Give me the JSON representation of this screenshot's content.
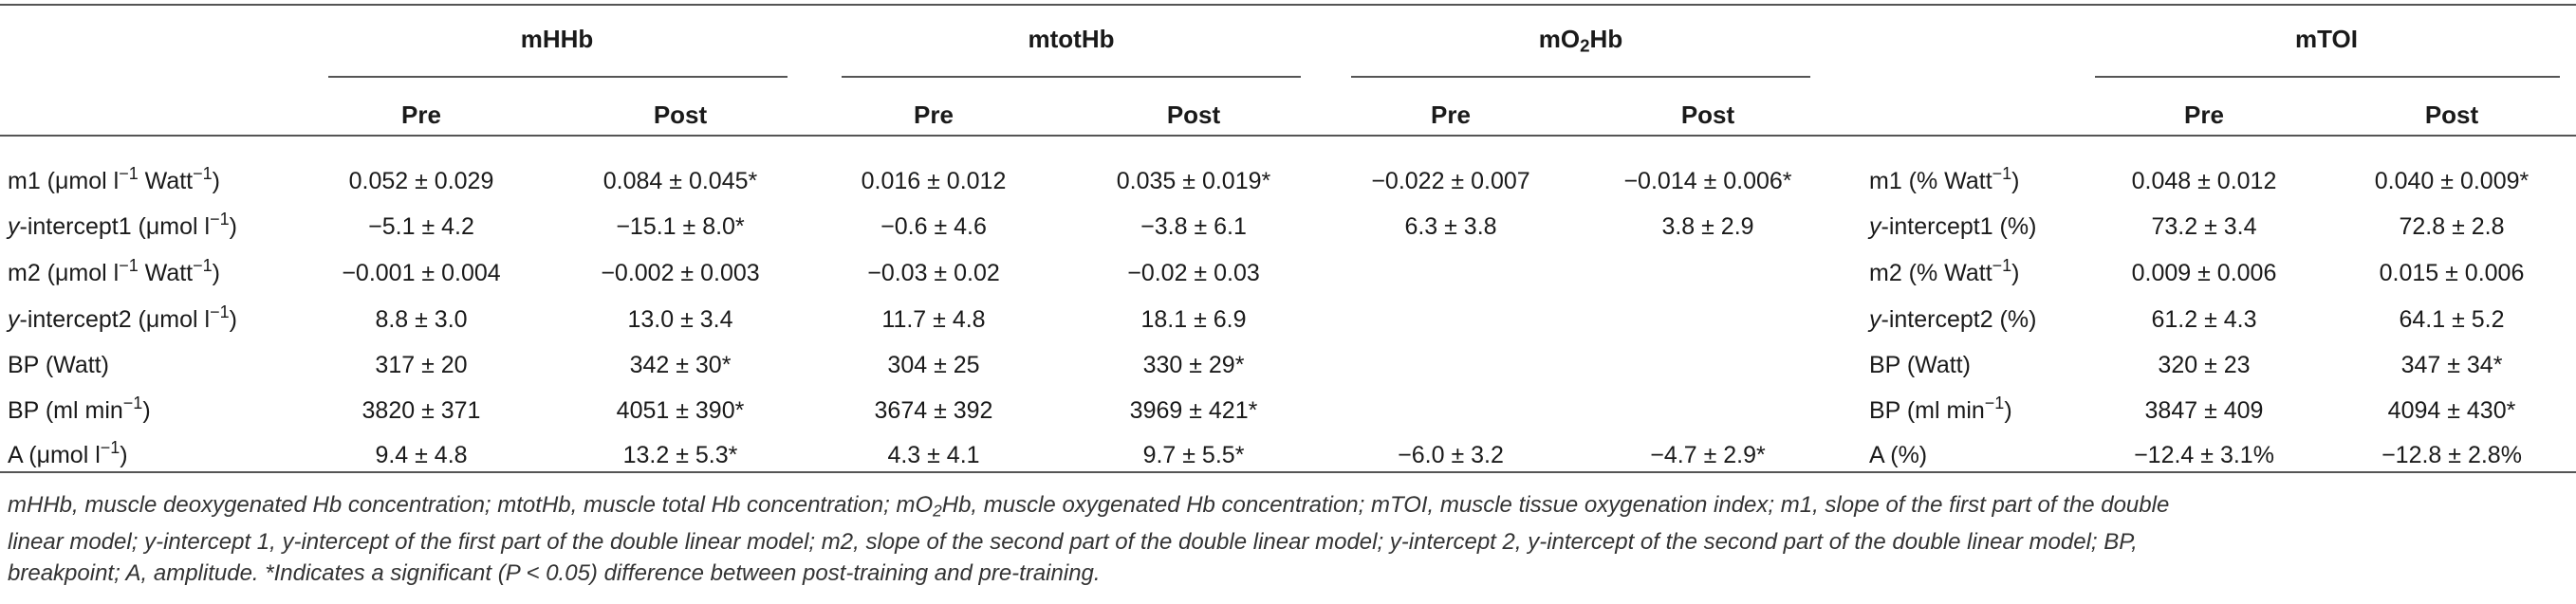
{
  "groups": {
    "mhhb": "mHHb",
    "mtothb": "mtotHb",
    "mo2hb": {
      "pre": "mO",
      "sub": "2",
      "post": "Hb"
    },
    "mtoi": "mTOI"
  },
  "subheads": [
    "Pre",
    "Post",
    "Pre",
    "Post",
    "Pre",
    "Post",
    "Pre",
    "Post"
  ],
  "rows": [
    {
      "label": {
        "t1": "m1 (μmol l",
        "s1": "−1",
        "t2": " Watt",
        "s2": "−1",
        "t3": ")"
      },
      "mhhb_pre": "0.052 ± 0.029",
      "mhhb_post": "0.084 ± 0.045*",
      "mtothb_pre": "0.016 ± 0.012",
      "mtothb_post": "0.035 ± 0.019*",
      "mo2hb_pre": "−0.022 ± 0.007",
      "mo2hb_post": "−0.014 ± 0.006*",
      "toi_label": {
        "t1": "m1 (% Watt",
        "s1": "−1",
        "t2": ")"
      },
      "mtoi_pre": "0.048 ± 0.012",
      "mtoi_post": "0.040 ± 0.009*"
    },
    {
      "label": {
        "i": "y",
        "t1": "-intercept1 (μmol l",
        "s1": "−1",
        "t2": ")"
      },
      "mhhb_pre": "−5.1 ± 4.2",
      "mhhb_post": "−15.1 ± 8.0*",
      "mtothb_pre": "−0.6 ± 4.6",
      "mtothb_post": "−3.8 ± 6.1",
      "mo2hb_pre": "6.3 ± 3.8",
      "mo2hb_post": "3.8 ± 2.9",
      "toi_label": {
        "i": "y",
        "t1": "-intercept1 (%)"
      },
      "mtoi_pre": "73.2 ± 3.4",
      "mtoi_post": "72.8 ± 2.8"
    },
    {
      "label": {
        "t1": "m2 (μmol l",
        "s1": "−1",
        "t2": " Watt",
        "s2": "−1",
        "t3": ")"
      },
      "mhhb_pre": "−0.001 ± 0.004",
      "mhhb_post": "−0.002 ± 0.003",
      "mtothb_pre": "−0.03 ± 0.02",
      "mtothb_post": "−0.02 ± 0.03",
      "mo2hb_pre": "",
      "mo2hb_post": "",
      "toi_label": {
        "t1": "m2 (% Watt",
        "s1": "−1",
        "t2": ")"
      },
      "mtoi_pre": "0.009 ± 0.006",
      "mtoi_post": "0.015 ± 0.006"
    },
    {
      "label": {
        "i": "y",
        "t1": "-intercept2 (μmol l",
        "s1": "−1",
        "t2": ")"
      },
      "mhhb_pre": "8.8 ± 3.0",
      "mhhb_post": "13.0 ± 3.4",
      "mtothb_pre": "11.7 ± 4.8",
      "mtothb_post": "18.1 ± 6.9",
      "mo2hb_pre": "",
      "mo2hb_post": "",
      "toi_label": {
        "i": "y",
        "t1": "-intercept2 (%)"
      },
      "mtoi_pre": "61.2 ± 4.3",
      "mtoi_post": "64.1 ± 5.2"
    },
    {
      "label": {
        "t1": "BP (Watt)"
      },
      "mhhb_pre": "317 ± 20",
      "mhhb_post": "342 ± 30*",
      "mtothb_pre": "304 ± 25",
      "mtothb_post": "330 ± 29*",
      "mo2hb_pre": "",
      "mo2hb_post": "",
      "toi_label": {
        "t1": "BP (Watt)"
      },
      "mtoi_pre": "320 ± 23",
      "mtoi_post": "347 ± 34*"
    },
    {
      "label": {
        "t1": "BP (ml min",
        "s1": "−1",
        "t2": ")"
      },
      "mhhb_pre": "3820 ± 371",
      "mhhb_post": "4051 ± 390*",
      "mtothb_pre": "3674 ± 392",
      "mtothb_post": "3969 ± 421*",
      "mo2hb_pre": "",
      "mo2hb_post": "",
      "toi_label": {
        "t1": "BP (ml min",
        "s1": "−1",
        "t2": ")"
      },
      "mtoi_pre": "3847 ± 409",
      "mtoi_post": "4094 ± 430*"
    },
    {
      "label": {
        "t1": "A (μmol l",
        "s1": "−1",
        "t2": ")"
      },
      "mhhb_pre": "9.4 ± 4.8",
      "mhhb_post": "13.2 ± 5.3*",
      "mtothb_pre": "4.3 ± 4.1",
      "mtothb_post": "9.7 ± 5.5*",
      "mo2hb_pre": "−6.0 ± 3.2",
      "mo2hb_post": "−4.7 ± 2.9*",
      "toi_label": {
        "t1": "A (%)"
      },
      "mtoi_pre": "−12.4 ± 3.1%",
      "mtoi_post": "−12.8 ± 2.8%"
    }
  ],
  "footnote": {
    "line1a": "mHHb, muscle deoxygenated Hb concentration; mtotHb, muscle total Hb concentration; mO",
    "line1sub": "2",
    "line1b": "Hb, muscle oxygenated Hb concentration; mTOI, muscle tissue oxygenation index; m1, slope of the first part of the double",
    "line2": "linear model; y-intercept 1, y-intercept of the first part of the double linear model; m2, slope of the second part of the double linear model; y-intercept 2, y-intercept of the second part of the double linear model; BP,",
    "line3": "breakpoint; A, amplitude. *Indicates a significant (P < 0.05) difference between post-training and pre-training."
  }
}
